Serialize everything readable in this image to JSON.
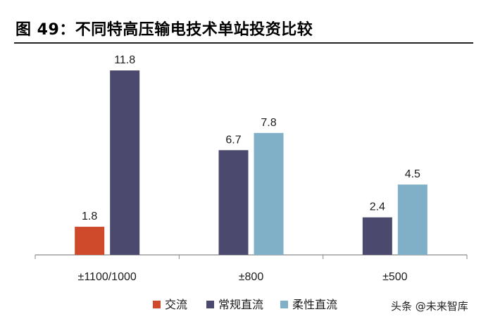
{
  "title": "图 49：不同特高压输电技术单站投资比较",
  "watermark": "头条 @未来智库",
  "colors": {
    "ac": "#cf4a2a",
    "dc": "#4b4a6e",
    "flex": "#7fb0c8",
    "axis": "#8a8a8a",
    "text": "#1a1a1a"
  },
  "chart_data": {
    "type": "bar",
    "categories": [
      "±1100/1000",
      "±800",
      "±500"
    ],
    "series": [
      {
        "name": "交流",
        "values": [
          1.8,
          null,
          null
        ],
        "color": "#cf4a2a"
      },
      {
        "name": "常规直流",
        "values": [
          11.8,
          6.7,
          2.4
        ],
        "color": "#4b4a6e"
      },
      {
        "name": "柔性直流",
        "values": [
          null,
          7.8,
          4.5
        ],
        "color": "#7fb0c8"
      }
    ],
    "data_labels": [
      [
        "1.8",
        "11.8",
        ""
      ],
      [
        "",
        "6.7",
        "7.8"
      ],
      [
        "",
        "2.4",
        "4.5"
      ]
    ],
    "ylim": [
      0,
      12
    ],
    "grid": false,
    "legend_position": "bottom"
  }
}
